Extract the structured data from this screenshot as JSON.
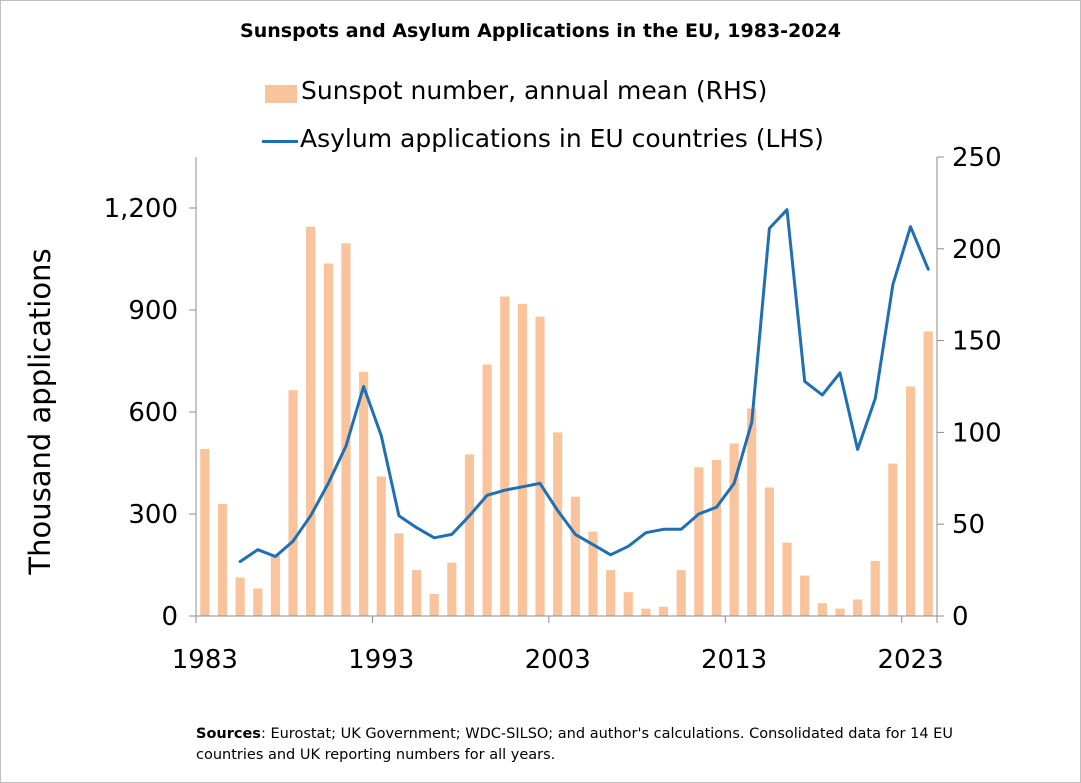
{
  "chart_data": {
    "type": "bar+line",
    "title": "Sunspots and Asylum Applications in the EU, 1983-2024",
    "ylabel_left": "Thousand applications",
    "ylim_left": [
      0,
      1350
    ],
    "yticks_left": [
      0,
      300,
      600,
      900,
      1200
    ],
    "ytick_labels_left": [
      "0",
      "300",
      "600",
      "900",
      "1,200"
    ],
    "ylim_right": [
      0,
      250
    ],
    "yticks_right": [
      0,
      50,
      100,
      150,
      200,
      250
    ],
    "xticks": [
      1983,
      1993,
      2003,
      2013,
      2023
    ],
    "series": [
      {
        "name": "Sunspot number, annual mean (RHS)",
        "kind": "bar",
        "axis": "right",
        "color": "#f9c49c",
        "x": [
          1983,
          1984,
          1985,
          1986,
          1987,
          1988,
          1989,
          1990,
          1991,
          1992,
          1993,
          1994,
          1995,
          1996,
          1997,
          1998,
          1999,
          2000,
          2001,
          2002,
          2003,
          2004,
          2005,
          2006,
          2007,
          2008,
          2009,
          2010,
          2011,
          2012,
          2013,
          2014,
          2015,
          2016,
          2017,
          2018,
          2019,
          2020,
          2021,
          2022,
          2023,
          2024
        ],
        "values": [
          91,
          61,
          21,
          15,
          33,
          123,
          212,
          192,
          203,
          133,
          76,
          45,
          25,
          12,
          29,
          88,
          137,
          174,
          170,
          163,
          100,
          65,
          46,
          25,
          13,
          4,
          5,
          25,
          81,
          85,
          94,
          113,
          70,
          40,
          22,
          7,
          4,
          9,
          30,
          83,
          125,
          155
        ]
      },
      {
        "name": "Asylum applications in EU countries (LHS)",
        "kind": "line",
        "axis": "left",
        "color": "#1f6fb5",
        "x": [
          1985,
          1986,
          1987,
          1988,
          1989,
          1990,
          1991,
          1992,
          1993,
          1994,
          1995,
          1996,
          1997,
          1998,
          1999,
          2000,
          2001,
          2002,
          2003,
          2004,
          2005,
          2006,
          2007,
          2008,
          2009,
          2010,
          2011,
          2012,
          2013,
          2014,
          2015,
          2016,
          2017,
          2018,
          2019,
          2020,
          2021,
          2022,
          2023,
          2024
        ],
        "values": [
          160,
          195,
          175,
          220,
          295,
          390,
          500,
          675,
          530,
          295,
          260,
          230,
          240,
          295,
          355,
          370,
          380,
          390,
          310,
          240,
          210,
          180,
          205,
          245,
          255,
          255,
          300,
          320,
          390,
          570,
          1140,
          1195,
          690,
          650,
          715,
          490,
          640,
          975,
          1145,
          1020
        ]
      }
    ]
  },
  "source": {
    "label": "Sources",
    "text": ": Eurostat; UK Government; WDC-SILSO; and author's calculations. Consolidated data for 14 EU countries and UK reporting numbers for all years."
  }
}
